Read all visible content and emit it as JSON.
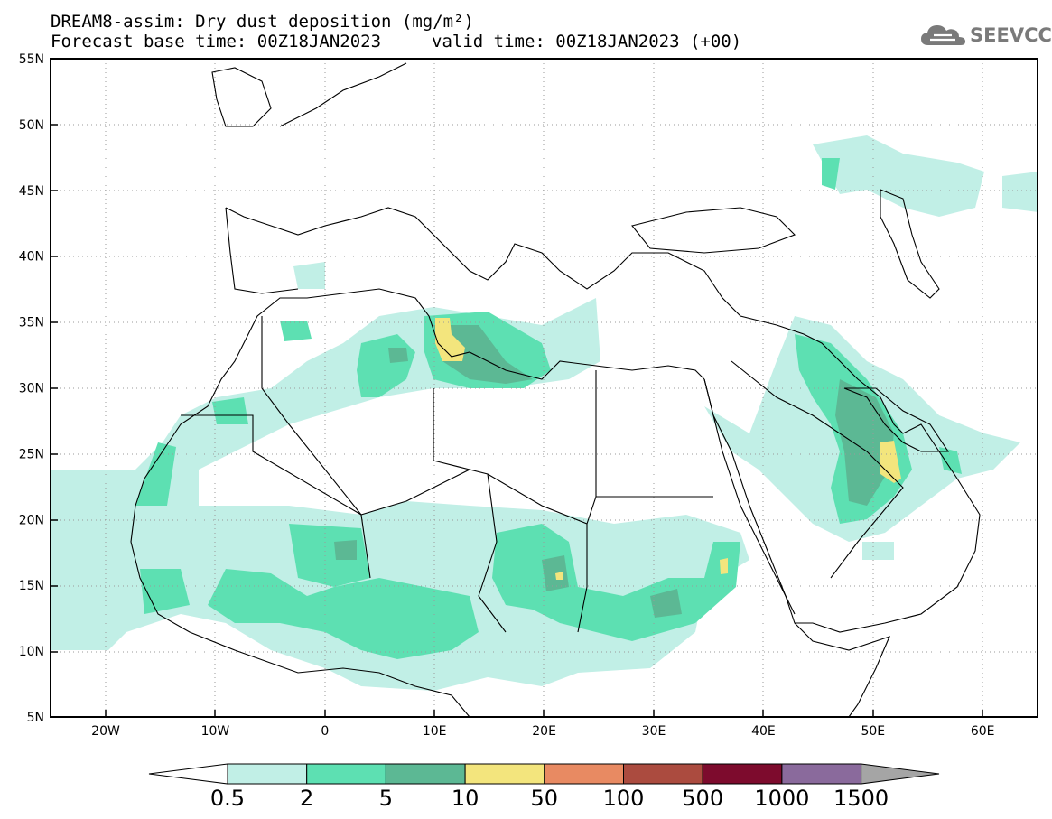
{
  "title": {
    "line1": "DREAM8-assim: Dry dust deposition (mg/m²)",
    "line2_left": "Forecast base time: 00Z18JAN2023",
    "line2_right": "valid time: 00Z18JAN2023 (+00)"
  },
  "logo": {
    "text": "SEEVCCC",
    "icon": "cloud-icon",
    "color": "#7a7a7a"
  },
  "map": {
    "lat_labels": [
      "55N",
      "50N",
      "45N",
      "40N",
      "35N",
      "30N",
      "25N",
      "20N",
      "15N",
      "10N",
      "5N"
    ],
    "lon_labels": [
      "20W",
      "10W",
      "0",
      "10E",
      "20E",
      "30E",
      "40E",
      "50E",
      "60E"
    ],
    "lat_range": [
      5,
      55
    ],
    "lon_range": [
      -25,
      65
    ]
  },
  "colorbar": {
    "labels": [
      "0.5",
      "2",
      "5",
      "10",
      "50",
      "100",
      "500",
      "1000",
      "1500"
    ],
    "colors": [
      "#ffffff",
      "#c1efe6",
      "#5de0b2",
      "#5cb894",
      "#f3e57d",
      "#e88a62",
      "#ab4b3f",
      "#7d0b2d",
      "#8a6a9c",
      "#a5a5a5"
    ]
  }
}
